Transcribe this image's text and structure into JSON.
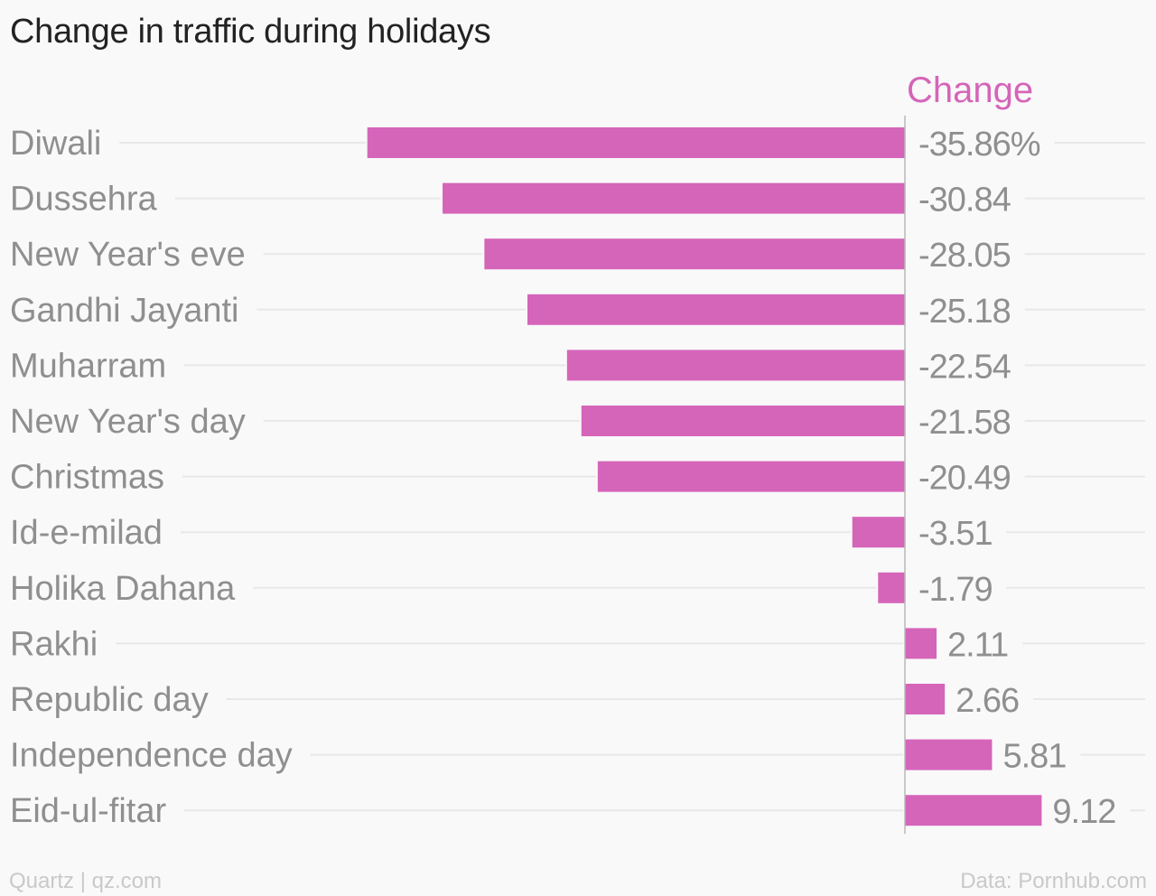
{
  "chart_data": {
    "type": "bar",
    "orientation": "horizontal",
    "title": "Change in traffic during holidays",
    "series_header": "Change",
    "categories": [
      "Diwali",
      "Dussehra",
      "New Year's eve",
      "Gandhi Jayanti",
      "Muharram",
      "New Year's day",
      "Christmas",
      "Id-e-milad",
      "Holika Dahana",
      "Rakhi",
      "Republic day",
      "Independence day",
      "Eid-ul-fitar"
    ],
    "values": [
      -35.86,
      -30.84,
      -28.05,
      -25.18,
      -22.54,
      -21.58,
      -20.49,
      -3.51,
      -1.79,
      2.11,
      2.66,
      5.81,
      9.12
    ],
    "value_labels": [
      "-35.86%",
      "-30.84",
      "-28.05",
      "-25.18",
      "-22.54",
      "-21.58",
      "-20.49",
      "-3.51",
      "-1.79",
      "2.11",
      "2.66",
      "5.81",
      "9.12"
    ],
    "bar_color": "#d565b9",
    "header_color": "#d565b9",
    "grid": true,
    "legend": "none"
  },
  "footer": {
    "source": "Quartz | qz.com",
    "data_credit": "Data: Pornhub.com"
  }
}
